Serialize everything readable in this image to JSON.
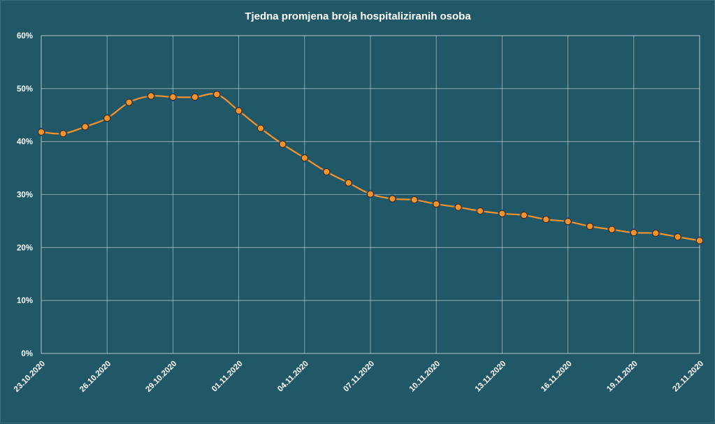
{
  "chart_data": {
    "type": "line",
    "title": "Tjedna promjena broja hospitaliziranih osoba",
    "xlabel": "",
    "ylabel": "",
    "ylim": [
      0,
      60
    ],
    "yticks": [
      0,
      10,
      20,
      30,
      40,
      50,
      60
    ],
    "ytick_labels": [
      "0%",
      "10%",
      "20%",
      "30%",
      "40%",
      "50%",
      "60%"
    ],
    "x": [
      "23.10.2020",
      "24.10.2020",
      "25.10.2020",
      "26.10.2020",
      "27.10.2020",
      "28.10.2020",
      "29.10.2020",
      "30.10.2020",
      "31.10.2020",
      "01.11.2020",
      "02.11.2020",
      "03.11.2020",
      "04.11.2020",
      "05.11.2020",
      "06.11.2020",
      "07.11.2020",
      "08.11.2020",
      "09.11.2020",
      "10.11.2020",
      "11.11.2020",
      "12.11.2020",
      "13.11.2020",
      "14.11.2020",
      "15.11.2020",
      "16.11.2020",
      "17.11.2020",
      "18.11.2020",
      "19.11.2020",
      "20.11.2020",
      "21.11.2020",
      "22.11.2020"
    ],
    "xtick_labels": [
      "23.10.2020",
      "26.10.2020",
      "29.10.2020",
      "01.11.2020",
      "04.11.2020",
      "07.11.2020",
      "10.11.2020",
      "13.11.2020",
      "16.11.2020",
      "19.11.2020",
      "22.11.2020"
    ],
    "grid": true,
    "series": [
      {
        "name": "Tjedna promjena",
        "color": "#f7932b",
        "values": [
          41.8,
          41.5,
          42.8,
          44.4,
          47.4,
          48.6,
          48.4,
          48.4,
          48.9,
          45.8,
          42.5,
          39.5,
          36.9,
          34.3,
          32.2,
          30.1,
          29.2,
          29.0,
          28.2,
          27.6,
          26.9,
          26.4,
          26.1,
          25.3,
          24.9,
          24.0,
          23.4,
          22.8,
          22.7,
          22.0,
          21.3
        ]
      }
    ]
  }
}
